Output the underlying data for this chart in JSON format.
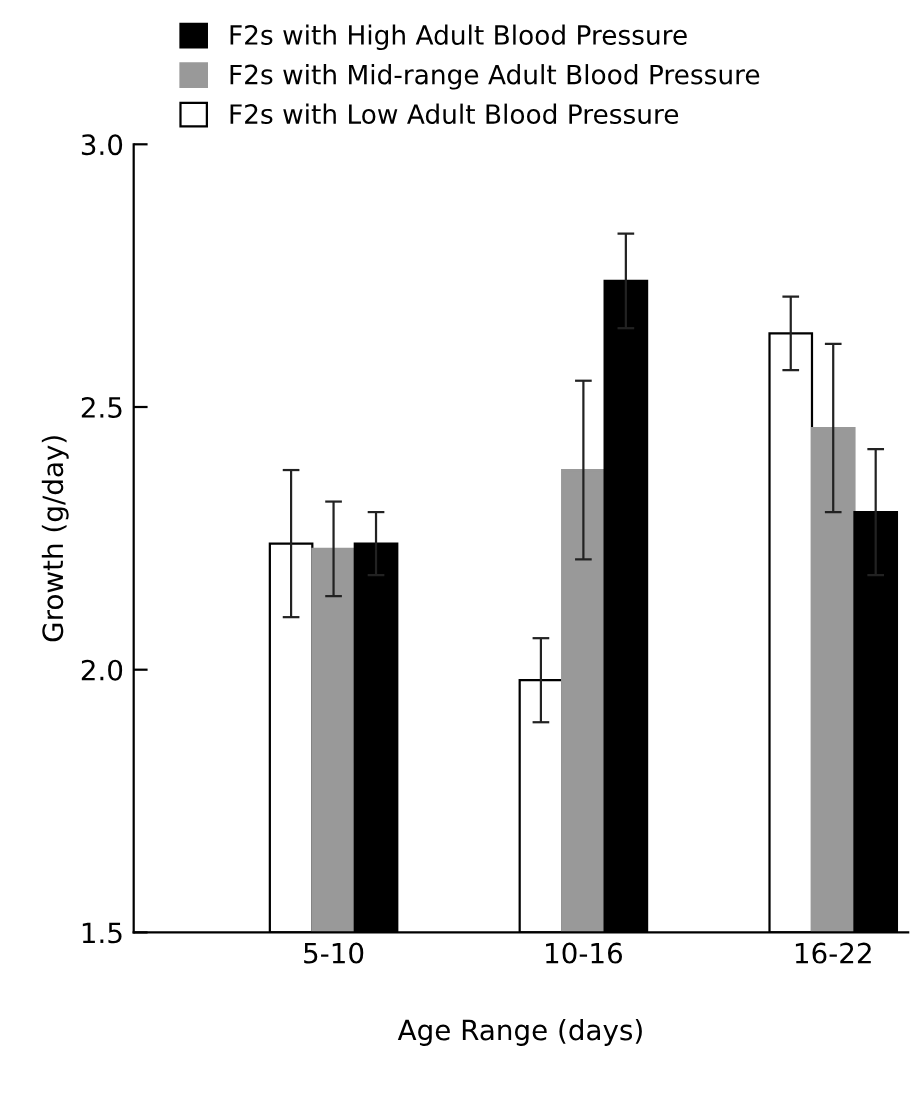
{
  "chart_data": {
    "type": "bar",
    "xlabel": "Age Range (days)",
    "ylabel": "Growth (g/day)",
    "categories": [
      "5-10",
      "10-16",
      "16-22"
    ],
    "series": [
      {
        "name": "F2s with Low Adult Blood Pressure",
        "color": "#ffffff",
        "values": [
          2.24,
          1.98,
          2.64
        ],
        "errors": [
          0.14,
          0.08,
          0.07
        ]
      },
      {
        "name": "F2s with Mid-range Adult Blood Pressure",
        "color": "#999999",
        "values": [
          2.23,
          2.38,
          2.46
        ],
        "errors": [
          0.09,
          0.17,
          0.16
        ]
      },
      {
        "name": "F2s with High Adult Blood Pressure",
        "color": "#000000",
        "values": [
          2.24,
          2.74,
          2.3
        ],
        "errors": [
          0.06,
          0.09,
          0.12
        ]
      }
    ],
    "ylim": [
      1.5,
      3.0
    ],
    "yticks": [
      {
        "value": 1.5,
        "label": "1.5"
      },
      {
        "value": 2.0,
        "label": "2.0"
      },
      {
        "value": 2.5,
        "label": "2.5"
      },
      {
        "value": 3.0,
        "label": "3.0"
      }
    ],
    "grid": false,
    "legend": "top"
  }
}
